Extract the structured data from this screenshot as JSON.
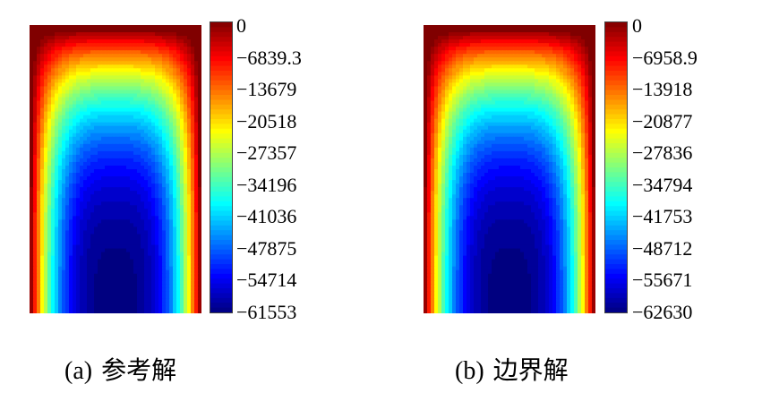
{
  "chart_data": [
    {
      "type": "heatmap",
      "caption": "(a)",
      "caption_text": "参考解",
      "colormap": "jet",
      "colorbar": {
        "max": 0,
        "min": -61553,
        "ticks": [
          "0",
          "−6839.3",
          "−13679",
          "−20518",
          "−27357",
          "−34196",
          "−41036",
          "−47875",
          "−54714",
          "−61553"
        ]
      }
    },
    {
      "type": "heatmap",
      "caption": "(b)",
      "caption_text": "边界解",
      "colormap": "jet",
      "colorbar": {
        "max": 0,
        "min": -62630,
        "ticks": [
          "0",
          "−6958.9",
          "−13918",
          "−20877",
          "−27836",
          "−34794",
          "−41753",
          "−48712",
          "−55671",
          "−62630"
        ]
      }
    }
  ]
}
